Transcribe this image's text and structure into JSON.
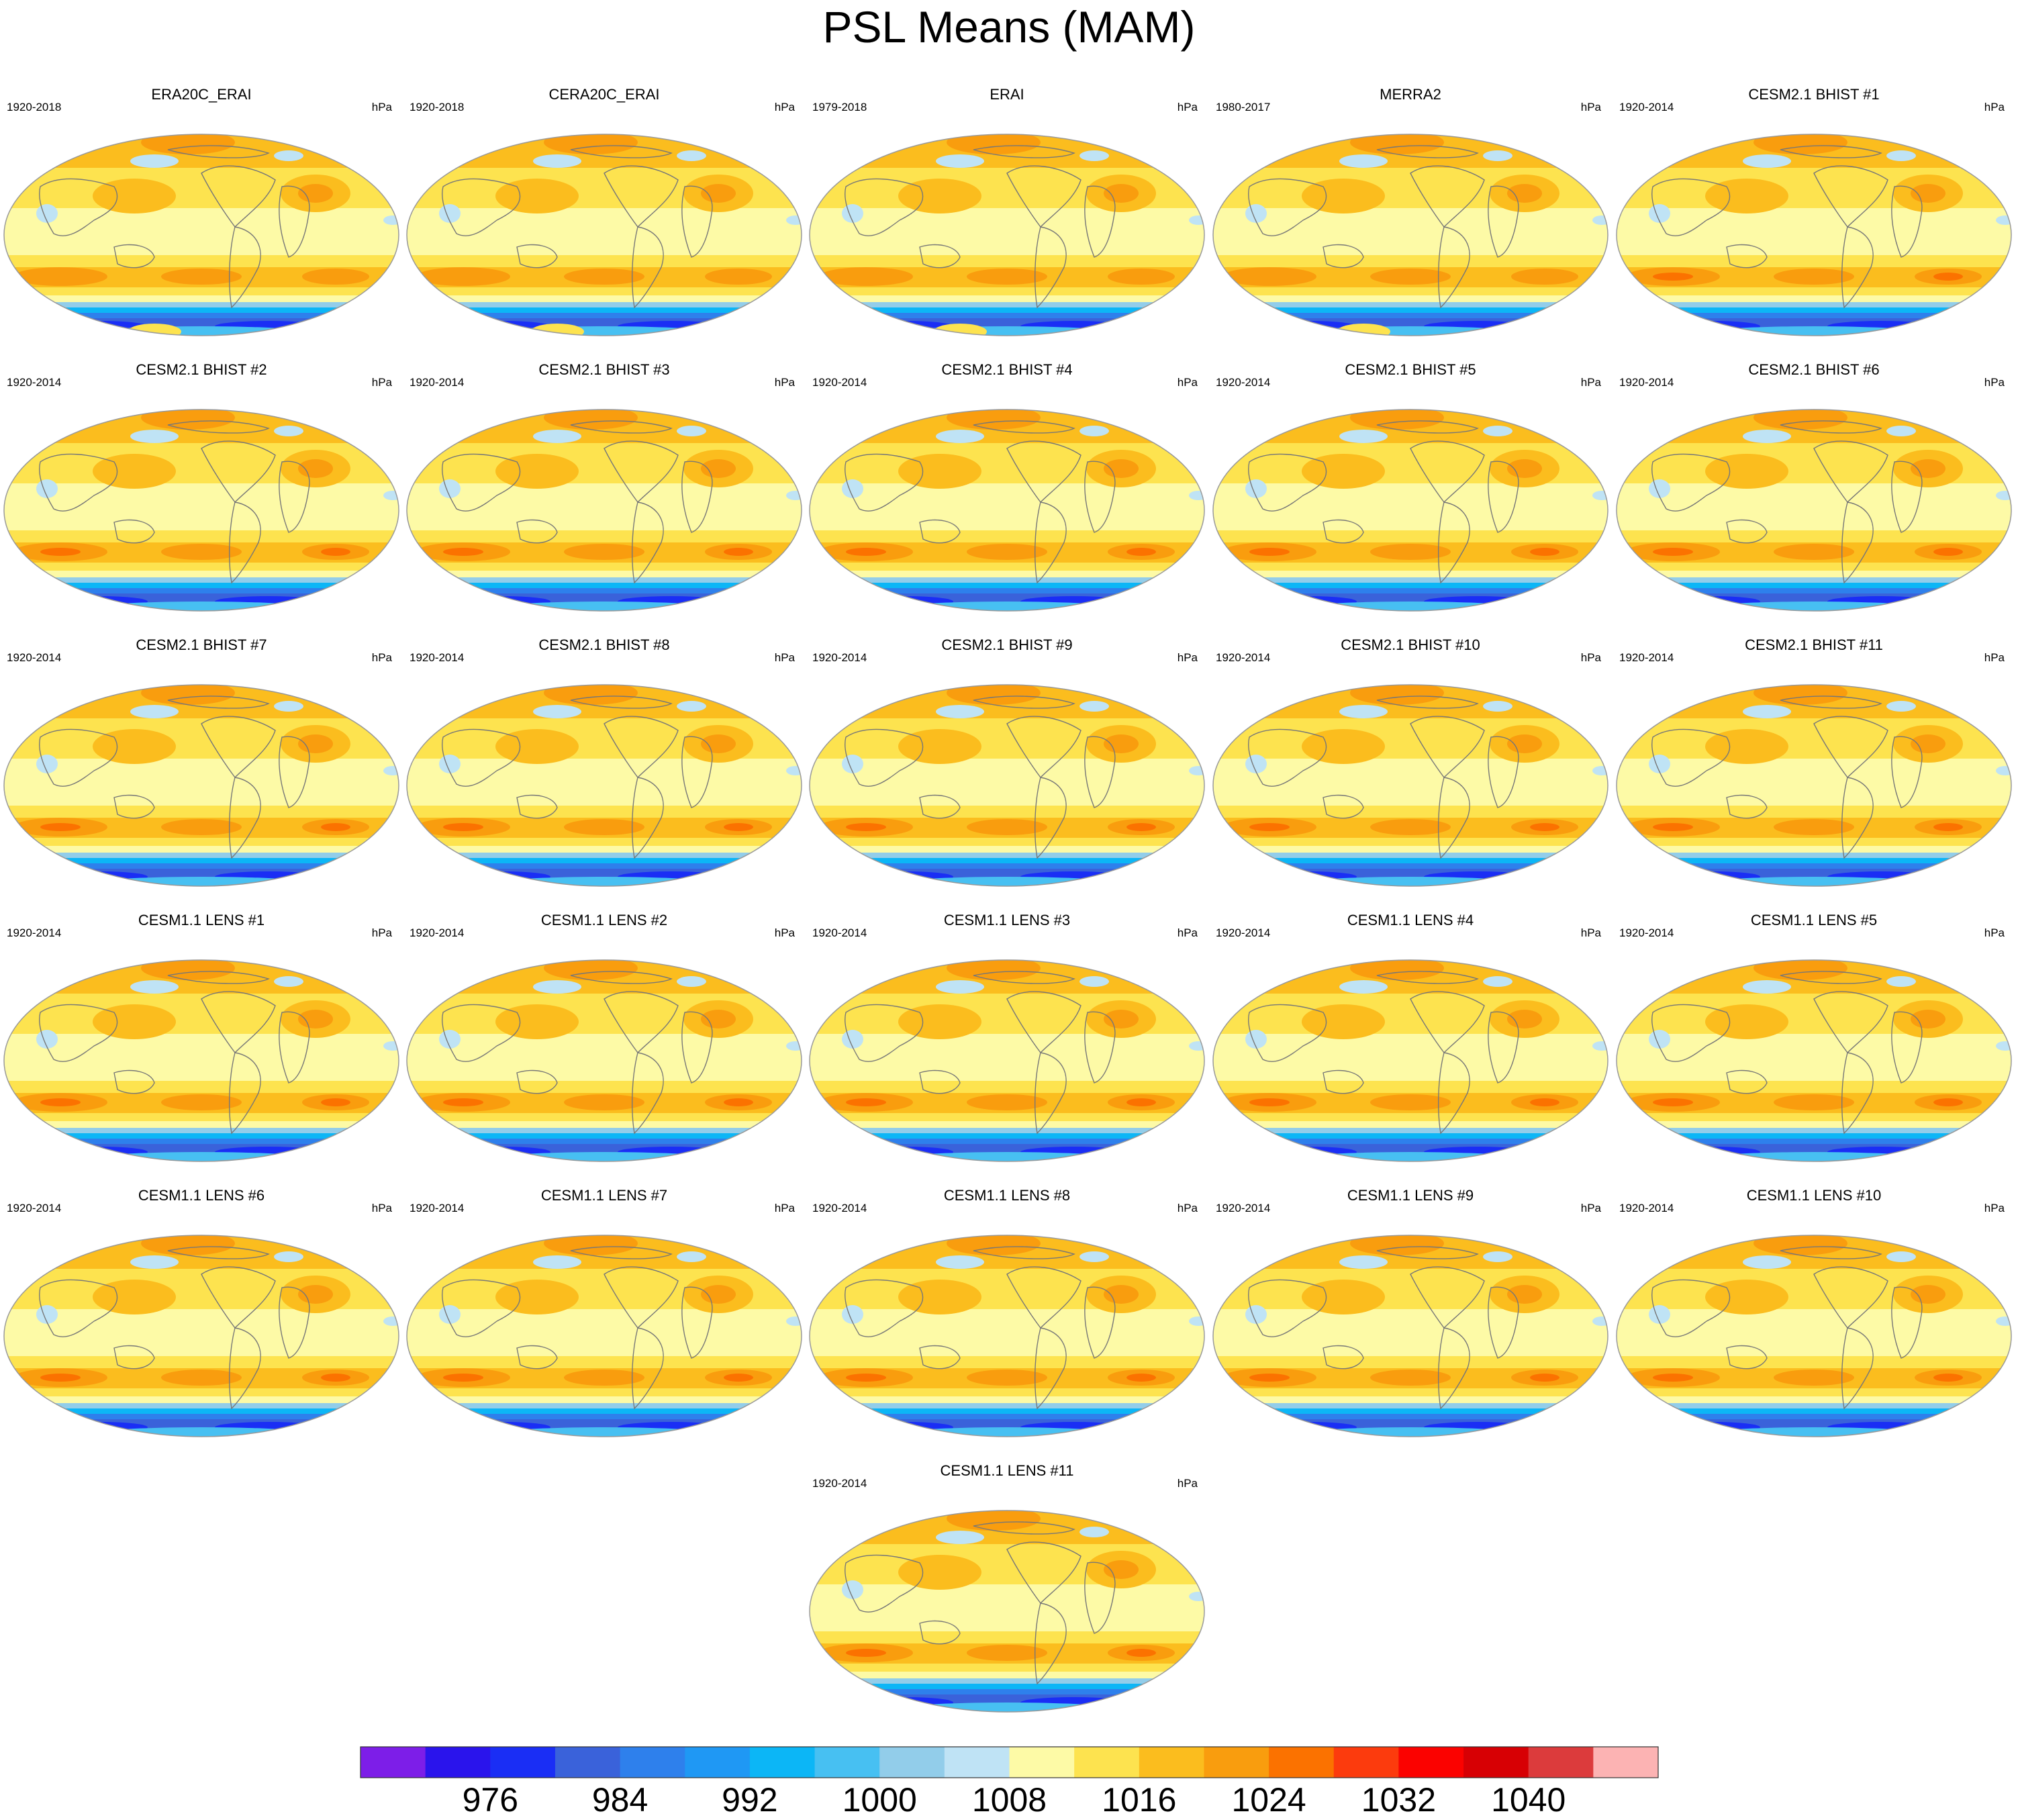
{
  "figure": {
    "title": "PSL Means (MAM)",
    "unit": "hPa"
  },
  "palette": {
    "bins": [
      "#7d1ee8",
      "#2a14ec",
      "#1a2ef5",
      "#3a62da",
      "#2e80ec",
      "#1f98f4",
      "#0cb6f6",
      "#47c0f2",
      "#92cdea",
      "#bfe3f5",
      "#fdfaa6",
      "#fde34f",
      "#fbbd1e",
      "#f99d0e",
      "#fb7200",
      "#fc3b0d",
      "#fb0200",
      "#d70004",
      "#dc3b3c",
      "#fcb3b3"
    ],
    "land_line": "#777777",
    "map_border": "#999999"
  },
  "colorbar": {
    "levels": [
      972,
      976,
      980,
      984,
      988,
      992,
      996,
      1000,
      1004,
      1008,
      1012,
      1016,
      1020,
      1024,
      1028,
      1032,
      1036,
      1040,
      1044
    ],
    "tick_labels": [
      "976",
      "984",
      "992",
      "1000",
      "1008",
      "1016",
      "1024",
      "1032",
      "1040"
    ]
  },
  "panels": [
    {
      "name": "ERA20C_ERAI",
      "years": "1920-2018",
      "unit": "hPa"
    },
    {
      "name": "CERA20C_ERAI",
      "years": "1920-2018",
      "unit": "hPa"
    },
    {
      "name": "ERAI",
      "years": "1979-2018",
      "unit": "hPa"
    },
    {
      "name": "MERRA2",
      "years": "1980-2017",
      "unit": "hPa"
    },
    {
      "name": "CESM2.1 BHIST #1",
      "years": "1920-2014",
      "unit": "hPa"
    },
    {
      "name": "CESM2.1 BHIST #2",
      "years": "1920-2014",
      "unit": "hPa"
    },
    {
      "name": "CESM2.1 BHIST #3",
      "years": "1920-2014",
      "unit": "hPa"
    },
    {
      "name": "CESM2.1 BHIST #4",
      "years": "1920-2014",
      "unit": "hPa"
    },
    {
      "name": "CESM2.1 BHIST #5",
      "years": "1920-2014",
      "unit": "hPa"
    },
    {
      "name": "CESM2.1 BHIST #6",
      "years": "1920-2014",
      "unit": "hPa"
    },
    {
      "name": "CESM2.1 BHIST #7",
      "years": "1920-2014",
      "unit": "hPa"
    },
    {
      "name": "CESM2.1 BHIST #8",
      "years": "1920-2014",
      "unit": "hPa"
    },
    {
      "name": "CESM2.1 BHIST #9",
      "years": "1920-2014",
      "unit": "hPa"
    },
    {
      "name": "CESM2.1 BHIST #10",
      "years": "1920-2014",
      "unit": "hPa"
    },
    {
      "name": "CESM2.1 BHIST #11",
      "years": "1920-2014",
      "unit": "hPa"
    },
    {
      "name": "CESM1.1 LENS #1",
      "years": "1920-2014",
      "unit": "hPa"
    },
    {
      "name": "CESM1.1 LENS #2",
      "years": "1920-2014",
      "unit": "hPa"
    },
    {
      "name": "CESM1.1 LENS #3",
      "years": "1920-2014",
      "unit": "hPa"
    },
    {
      "name": "CESM1.1 LENS #4",
      "years": "1920-2014",
      "unit": "hPa"
    },
    {
      "name": "CESM1.1 LENS #5",
      "years": "1920-2014",
      "unit": "hPa"
    },
    {
      "name": "CESM1.1 LENS #6",
      "years": "1920-2014",
      "unit": "hPa"
    },
    {
      "name": "CESM1.1 LENS #7",
      "years": "1920-2014",
      "unit": "hPa"
    },
    {
      "name": "CESM1.1 LENS #8",
      "years": "1920-2014",
      "unit": "hPa"
    },
    {
      "name": "CESM1.1 LENS #9",
      "years": "1920-2014",
      "unit": "hPa"
    },
    {
      "name": "CESM1.1 LENS #10",
      "years": "1920-2014",
      "unit": "hPa"
    },
    {
      "name": "CESM1.1 LENS #11",
      "years": "1920-2014",
      "unit": "hPa"
    }
  ]
}
